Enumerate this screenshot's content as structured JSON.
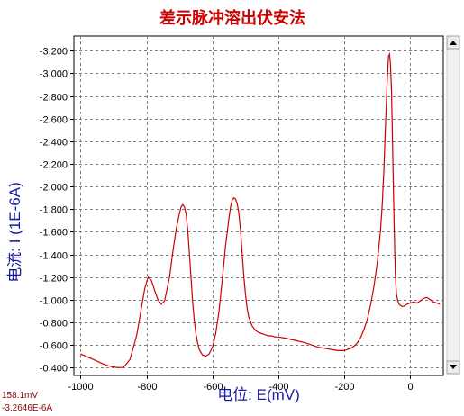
{
  "chart_data": {
    "type": "line",
    "title": "差示脉冲溶出伏安法",
    "xlabel": "电位:  E(mV)",
    "ylabel": "电流:  I  (1E-6A)",
    "xlim": [
      -1020,
      100
    ],
    "ylim": [
      -0.33,
      -3.33
    ],
    "y_axis_inverted": true,
    "grid": true,
    "x_ticks": [
      -1000,
      -800,
      -600,
      -400,
      -200,
      0
    ],
    "x_tick_labels": [
      "-1000",
      "-800",
      "-600",
      "-400",
      "-200",
      "0"
    ],
    "y_ticks": [
      -3.2,
      -3.0,
      -2.8,
      -2.6,
      -2.4,
      -2.2,
      -2.0,
      -1.8,
      -1.6,
      -1.4,
      -1.2,
      -1.0,
      -0.8,
      -0.6,
      -0.4
    ],
    "y_tick_labels": [
      "-3.200",
      "-3.000",
      "-2.800",
      "-2.600",
      "-2.400",
      "-2.200",
      "-2.000",
      "-1.800",
      "-1.600",
      "-1.400",
      "-1.200",
      "-1.000",
      "-0.800",
      "-0.600",
      "-0.400"
    ],
    "series": [
      {
        "color": "#cc0000",
        "x": [
          -1000,
          -960,
          -930,
          -910,
          -890,
          -870,
          -850,
          -830,
          -815,
          -805,
          -795,
          -785,
          -775,
          -765,
          -755,
          -745,
          -730,
          -720,
          -710,
          -700,
          -695,
          -690,
          -685,
          -680,
          -675,
          -670,
          -665,
          -660,
          -655,
          -650,
          -645,
          -640,
          -630,
          -620,
          -610,
          -600,
          -590,
          -580,
          -570,
          -560,
          -550,
          -545,
          -540,
          -535,
          -530,
          -525,
          -520,
          -515,
          -510,
          -505,
          -500,
          -495,
          -490,
          -480,
          -470,
          -460,
          -450,
          -440,
          -430,
          -420,
          -410,
          -400,
          -380,
          -350,
          -320,
          -300,
          -280,
          -260,
          -240,
          -220,
          -200,
          -190,
          -180,
          -170,
          -160,
          -150,
          -140,
          -130,
          -120,
          -110,
          -100,
          -90,
          -85,
          -80,
          -75,
          -70,
          -66,
          -63,
          -60,
          -57,
          -55,
          -53,
          -51,
          -49,
          -47,
          -45,
          -42,
          -38,
          -34,
          -30,
          -25,
          -20,
          -15,
          -10,
          0,
          10,
          20,
          30,
          40,
          50,
          60,
          70,
          80,
          90
        ],
        "y": [
          -0.52,
          -0.47,
          -0.43,
          -0.41,
          -0.4,
          -0.4,
          -0.47,
          -0.68,
          -0.93,
          -1.1,
          -1.2,
          -1.17,
          -1.08,
          -1.0,
          -0.96,
          -0.99,
          -1.2,
          -1.42,
          -1.62,
          -1.76,
          -1.82,
          -1.84,
          -1.82,
          -1.76,
          -1.62,
          -1.42,
          -1.2,
          -0.98,
          -0.82,
          -0.7,
          -0.62,
          -0.56,
          -0.51,
          -0.5,
          -0.52,
          -0.58,
          -0.7,
          -0.9,
          -1.18,
          -1.48,
          -1.72,
          -1.82,
          -1.88,
          -1.9,
          -1.89,
          -1.85,
          -1.77,
          -1.62,
          -1.42,
          -1.22,
          -1.05,
          -0.93,
          -0.85,
          -0.77,
          -0.73,
          -0.71,
          -0.7,
          -0.69,
          -0.68,
          -0.68,
          -0.67,
          -0.67,
          -0.66,
          -0.64,
          -0.62,
          -0.6,
          -0.58,
          -0.57,
          -0.56,
          -0.55,
          -0.55,
          -0.56,
          -0.57,
          -0.59,
          -0.62,
          -0.67,
          -0.74,
          -0.83,
          -0.96,
          -1.12,
          -1.33,
          -1.62,
          -1.85,
          -2.15,
          -2.55,
          -2.95,
          -3.15,
          -3.17,
          -3.08,
          -2.85,
          -2.55,
          -2.25,
          -1.95,
          -1.65,
          -1.4,
          -1.2,
          -1.05,
          -0.99,
          -0.96,
          -0.95,
          -0.94,
          -0.94,
          -0.95,
          -0.96,
          -0.97,
          -0.98,
          -0.97,
          -0.99,
          -1.01,
          -1.02,
          -1.0,
          -0.98,
          -0.97,
          -0.96
        ]
      }
    ]
  },
  "readout": {
    "potential": "158.1mV",
    "current": "-3.2646E-6A"
  },
  "colors": {
    "title": "#cc0000",
    "axis_label": "#1a1aa6",
    "curve": "#cc0000",
    "readout": "#8b0000",
    "grid": "#7f7f7f"
  }
}
